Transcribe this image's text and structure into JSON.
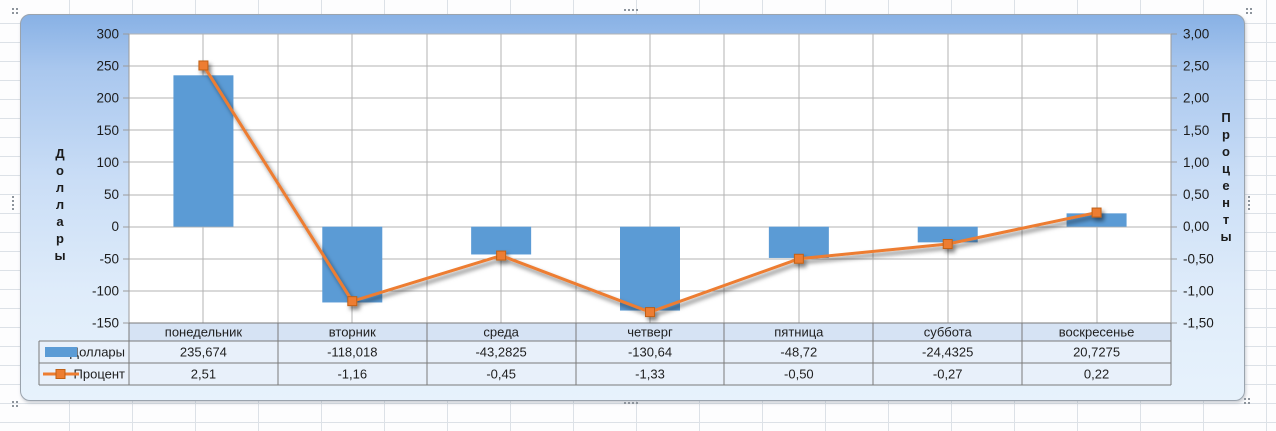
{
  "chart_data": {
    "type": "combo-bar-line",
    "title": "",
    "categories": [
      "понедельник",
      "вторник",
      "среда",
      "четверг",
      "пятница",
      "суббота",
      "воскресенье"
    ],
    "series": [
      {
        "name": "Доллары",
        "type": "bar",
        "axis": "left",
        "color": "#5b9bd5",
        "values": [
          235.674,
          -118.018,
          -43.2825,
          -130.64,
          -48.72,
          -24.4325,
          20.7275
        ],
        "labels": [
          "235,674",
          "-118,018",
          "-43,2825",
          "-130,64",
          "-48,72",
          "-24,4325",
          "20,7275"
        ]
      },
      {
        "name": "Процент",
        "type": "line",
        "axis": "right",
        "color": "#ed7d31",
        "marker": "square",
        "values": [
          2.51,
          -1.16,
          -0.45,
          -1.33,
          -0.5,
          -0.27,
          0.22
        ],
        "labels": [
          "2,51",
          "-1,16",
          "-0,45",
          "-1,33",
          "-0,50",
          "-0,27",
          "0,22"
        ]
      }
    ],
    "left_axis": {
      "title": "Доллары",
      "min": -150,
      "max": 300,
      "step": 50,
      "labels": [
        "300",
        "250",
        "200",
        "150",
        "100",
        "50",
        "0",
        "-50",
        "-100",
        "-150"
      ]
    },
    "right_axis": {
      "title": "Проценты",
      "min": -1.5,
      "max": 3,
      "step": 0.5,
      "labels": [
        "3,00",
        "2,50",
        "2,00",
        "1,50",
        "1,00",
        "0,50",
        "0,00",
        "-0,50",
        "-1,00",
        "-1,50"
      ]
    },
    "legend_position": "data-table",
    "grid": true
  },
  "colors": {
    "bar_fill": "#5b9bd5",
    "line_stroke": "#ed7d31",
    "marker_border": "#c06015",
    "plot_bg": "#ffffff",
    "gridline": "#b3b3b3",
    "axis_line": "#9b9b9b",
    "table_border": "#7a7a7a",
    "table_header_fill": "#d6e3f4",
    "table_row_fill": "#e8f0fa",
    "text": "#1e1e1e"
  }
}
